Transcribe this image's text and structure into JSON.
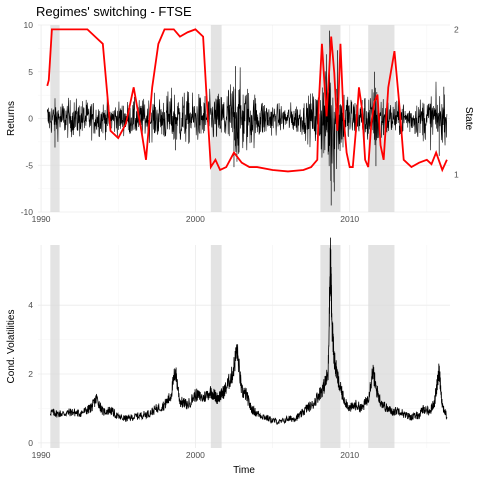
{
  "title": "Regimes' switching - FTSE",
  "chart_data": [
    {
      "type": "line",
      "title": "Regimes' switching - FTSE",
      "xlabel": "",
      "ylabel": "Returns",
      "y2label": "State",
      "xlim": [
        1989.8,
        2016.5
      ],
      "ylim": [
        -10,
        10
      ],
      "y2lim": [
        0.74,
        2.03
      ],
      "x_ticks": [
        1990,
        2000,
        2010
      ],
      "x_tick_labels": [
        "1990",
        "2000",
        "2010"
      ],
      "y_ticks": [
        -10,
        -5,
        0,
        5,
        10
      ],
      "y_tick_labels": [
        "-10",
        "-5",
        "0",
        "5",
        "10"
      ],
      "y2_ticks": [
        1,
        2
      ],
      "y2_tick_labels": [
        "1",
        "2"
      ],
      "grid": true,
      "shaded_periods": [
        [
          1990.6,
          1991.2
        ],
        [
          2001.0,
          2001.7
        ],
        [
          2008.1,
          2009.4
        ],
        [
          2011.2,
          2012.9
        ]
      ],
      "series": [
        {
          "color": "#000000",
          "type": "returns",
          "volatility_envelope": [
            [
              1990.5,
              0.95
            ],
            [
              1992.5,
              1.0
            ],
            [
              1995.0,
              0.85
            ],
            [
              1997.5,
              1.1
            ],
            [
              1998.7,
              1.55
            ],
            [
              2000.0,
              1.25
            ],
            [
              2001.5,
              1.35
            ],
            [
              2002.7,
              2.4
            ],
            [
              2004.0,
              1.2
            ],
            [
              2005.5,
              0.7
            ],
            [
              2007.0,
              0.9
            ],
            [
              2008.0,
              1.7
            ],
            [
              2008.8,
              4.0
            ],
            [
              2009.5,
              1.9
            ],
            [
              2010.5,
              1.0
            ],
            [
              2011.7,
              1.8
            ],
            [
              2012.5,
              1.0
            ],
            [
              2014.0,
              0.85
            ],
            [
              2015.5,
              1.4
            ],
            [
              2016.3,
              1.1
            ]
          ],
          "extreme_points": [
            [
              2002.5,
              -5.2
            ],
            [
              2002.6,
              5.6
            ],
            [
              2008.7,
              9.4
            ],
            [
              2008.8,
              -9.3
            ],
            [
              2009.0,
              -7.8
            ],
            [
              2009.2,
              7.3
            ],
            [
              2011.6,
              5.0
            ],
            [
              2011.7,
              -5.1
            ],
            [
              2015.8,
              -4.0
            ],
            [
              2016.1,
              3.4
            ],
            [
              1998.7,
              -3.4
            ],
            [
              1990.9,
              -3.1
            ]
          ]
        },
        {
          "color": "#ff0000",
          "type": "state",
          "x": [
            1990.4,
            1990.5,
            1990.7,
            1992.0,
            1993.0,
            1993.5,
            1994.0,
            1994.5,
            1995.0,
            1995.5,
            1996.0,
            1996.5,
            1996.8,
            1997.2,
            1997.6,
            1998.0,
            1998.6,
            1999.0,
            1999.5,
            2000.0,
            2000.5,
            2000.8,
            2001.0,
            2001.3,
            2001.6,
            2002.0,
            2002.5,
            2003.0,
            2003.5,
            2004.0,
            2005.0,
            2006.0,
            2007.0,
            2007.5,
            2007.9,
            2008.0,
            2008.2,
            2008.5,
            2008.8,
            2009.0,
            2009.2,
            2009.4,
            2009.6,
            2009.8,
            2010.0,
            2010.2,
            2010.4,
            2010.6,
            2010.8,
            2011.0,
            2011.2,
            2011.4,
            2011.6,
            2011.8,
            2012.0,
            2012.2,
            2012.5,
            2012.9,
            2013.2,
            2013.5,
            2014.0,
            2014.5,
            2015.0,
            2015.3,
            2015.6,
            2016.0,
            2016.3
          ],
          "y": [
            1.61,
            1.65,
            2.0,
            2.0,
            2.0,
            1.95,
            1.9,
            1.3,
            1.25,
            1.35,
            1.6,
            1.3,
            1.1,
            1.6,
            1.9,
            2.0,
            2.0,
            1.95,
            1.98,
            2.0,
            1.95,
            1.4,
            1.05,
            1.1,
            1.03,
            1.05,
            1.15,
            1.08,
            1.05,
            1.05,
            1.03,
            1.02,
            1.03,
            1.05,
            1.1,
            1.5,
            1.9,
            1.4,
            1.95,
            1.7,
            1.3,
            1.9,
            1.4,
            1.15,
            1.05,
            1.05,
            1.3,
            1.6,
            1.45,
            1.1,
            1.05,
            1.35,
            1.5,
            1.55,
            1.2,
            1.1,
            1.6,
            1.85,
            1.5,
            1.1,
            1.05,
            1.08,
            1.1,
            1.07,
            1.15,
            1.03,
            1.1
          ]
        }
      ]
    },
    {
      "type": "line",
      "xlabel": "Time",
      "ylabel": "Cond. Volatilities",
      "xlim": [
        1989.8,
        2016.5
      ],
      "ylim": [
        -0.15,
        5.75
      ],
      "x_ticks": [
        1990,
        2000,
        2010
      ],
      "x_tick_labels": [
        "1990",
        "2000",
        "2010"
      ],
      "y_ticks": [
        0,
        2,
        4
      ],
      "y_tick_labels": [
        "0",
        "2",
        "4"
      ],
      "grid": true,
      "shaded_periods": [
        [
          1990.6,
          1991.2
        ],
        [
          2001.0,
          2001.7
        ],
        [
          2008.1,
          2009.4
        ],
        [
          2011.2,
          2012.9
        ]
      ],
      "series": [
        {
          "color": "#000000",
          "x": [
            1990.6,
            1991.0,
            1991.5,
            1992.0,
            1992.5,
            1993.0,
            1993.3,
            1993.6,
            1994.0,
            1994.5,
            1995.0,
            1995.5,
            1996.0,
            1996.5,
            1997.0,
            1997.5,
            1998.0,
            1998.4,
            1998.7,
            1999.0,
            1999.5,
            2000.0,
            2000.5,
            2001.0,
            2001.4,
            2001.7,
            2002.0,
            2002.4,
            2002.7,
            2003.0,
            2003.3,
            2003.6,
            2004.0,
            2004.5,
            2005.0,
            2005.5,
            2006.0,
            2006.4,
            2006.8,
            2007.2,
            2007.6,
            2008.0,
            2008.3,
            2008.6,
            2008.75,
            2008.85,
            2009.0,
            2009.3,
            2009.6,
            2010.0,
            2010.4,
            2010.8,
            2011.2,
            2011.5,
            2011.7,
            2012.0,
            2012.4,
            2012.8,
            2013.2,
            2013.6,
            2014.0,
            2014.5,
            2014.8,
            2015.2,
            2015.5,
            2015.8,
            2016.0,
            2016.3
          ],
          "y": [
            0.9,
            0.85,
            0.85,
            0.9,
            0.85,
            0.95,
            1.05,
            1.3,
            0.9,
            0.95,
            0.75,
            0.7,
            0.75,
            0.8,
            0.85,
            1.0,
            1.1,
            1.35,
            2.1,
            1.2,
            1.1,
            1.4,
            1.3,
            1.5,
            1.3,
            1.4,
            1.6,
            2.0,
            2.7,
            1.5,
            1.4,
            1.0,
            0.85,
            0.75,
            0.65,
            0.6,
            0.7,
            0.7,
            0.8,
            1.0,
            1.1,
            1.4,
            1.6,
            2.0,
            5.5,
            3.5,
            2.4,
            1.7,
            1.3,
            1.0,
            1.1,
            1.0,
            1.3,
            2.1,
            1.6,
            1.2,
            1.0,
            0.9,
            0.95,
            0.8,
            0.75,
            0.8,
            1.0,
            0.9,
            1.2,
            2.1,
            1.1,
            0.75
          ]
        }
      ]
    }
  ]
}
